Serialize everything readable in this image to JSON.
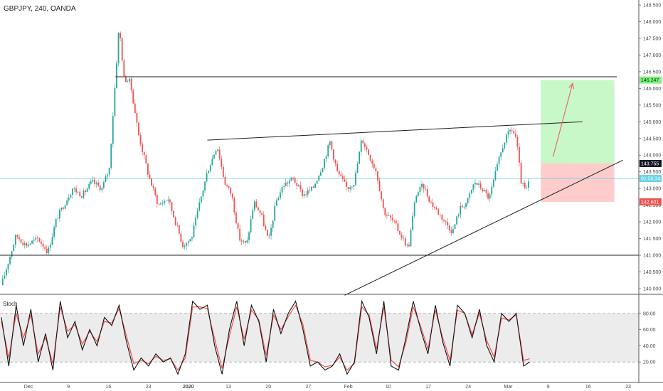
{
  "chart_data": {
    "type": "candlestick",
    "title": "GBPJPY, 240, OANDA",
    "price_axis": {
      "ylim": [
        139.85,
        148.65
      ],
      "ticks": [
        "140.000",
        "140.500",
        "141.000",
        "141.500",
        "142.000",
        "142.500",
        "143.000",
        "143.500",
        "144.000",
        "144.500",
        "145.000",
        "145.500",
        "146.000",
        "146.500",
        "147.000",
        "147.500",
        "148.000",
        "148.500"
      ]
    },
    "time_axis": {
      "labels": [
        "Dec",
        "9",
        "16",
        "23",
        "2020",
        "13",
        "20",
        "27",
        "Feb",
        "10",
        "17",
        "24",
        "Mar",
        "9",
        "16",
        "23"
      ],
      "bold_labels": [
        "2020"
      ]
    },
    "price_series": [
      {
        "t": 0,
        "p": 140.1
      },
      {
        "t": 12,
        "p": 141.6
      },
      {
        "t": 20,
        "p": 141.3
      },
      {
        "t": 30,
        "p": 141.5
      },
      {
        "t": 38,
        "p": 141.1
      },
      {
        "t": 45,
        "p": 142.1
      },
      {
        "t": 58,
        "p": 143.0
      },
      {
        "t": 66,
        "p": 142.8
      },
      {
        "t": 74,
        "p": 143.2
      },
      {
        "t": 82,
        "p": 143.0
      },
      {
        "t": 88,
        "p": 143.6
      },
      {
        "t": 96,
        "p": 147.9
      },
      {
        "t": 100,
        "p": 146.3
      },
      {
        "t": 105,
        "p": 146.2
      },
      {
        "t": 112,
        "p": 144.6
      },
      {
        "t": 120,
        "p": 143.4
      },
      {
        "t": 128,
        "p": 142.5
      },
      {
        "t": 136,
        "p": 142.7
      },
      {
        "t": 142,
        "p": 142.0
      },
      {
        "t": 148,
        "p": 141.3
      },
      {
        "t": 155,
        "p": 141.5
      },
      {
        "t": 162,
        "p": 142.6
      },
      {
        "t": 168,
        "p": 143.5
      },
      {
        "t": 176,
        "p": 144.3
      },
      {
        "t": 182,
        "p": 143.2
      },
      {
        "t": 188,
        "p": 142.8
      },
      {
        "t": 194,
        "p": 141.5
      },
      {
        "t": 200,
        "p": 141.3
      },
      {
        "t": 206,
        "p": 142.6
      },
      {
        "t": 212,
        "p": 142.2
      },
      {
        "t": 218,
        "p": 141.4
      },
      {
        "t": 224,
        "p": 142.6
      },
      {
        "t": 230,
        "p": 143.1
      },
      {
        "t": 238,
        "p": 143.3
      },
      {
        "t": 246,
        "p": 142.8
      },
      {
        "t": 254,
        "p": 143.0
      },
      {
        "t": 262,
        "p": 143.7
      },
      {
        "t": 268,
        "p": 144.4
      },
      {
        "t": 274,
        "p": 143.5
      },
      {
        "t": 282,
        "p": 143.0
      },
      {
        "t": 288,
        "p": 143.2
      },
      {
        "t": 294,
        "p": 144.5
      },
      {
        "t": 300,
        "p": 144.0
      },
      {
        "t": 306,
        "p": 143.5
      },
      {
        "t": 312,
        "p": 142.3
      },
      {
        "t": 320,
        "p": 142.0
      },
      {
        "t": 326,
        "p": 141.6
      },
      {
        "t": 332,
        "p": 141.2
      },
      {
        "t": 338,
        "p": 142.8
      },
      {
        "t": 344,
        "p": 143.1
      },
      {
        "t": 350,
        "p": 142.6
      },
      {
        "t": 356,
        "p": 142.3
      },
      {
        "t": 362,
        "p": 142.0
      },
      {
        "t": 368,
        "p": 141.7
      },
      {
        "t": 374,
        "p": 142.4
      },
      {
        "t": 380,
        "p": 142.6
      },
      {
        "t": 386,
        "p": 143.2
      },
      {
        "t": 392,
        "p": 143.0
      },
      {
        "t": 398,
        "p": 142.7
      },
      {
        "t": 404,
        "p": 143.6
      },
      {
        "t": 410,
        "p": 144.4
      },
      {
        "t": 416,
        "p": 144.8
      },
      {
        "t": 420,
        "p": 144.5
      },
      {
        "t": 424,
        "p": 143.2
      },
      {
        "t": 428,
        "p": 142.9
      },
      {
        "t": 431,
        "p": 143.3
      }
    ],
    "stoch_axis": {
      "ylim": [
        0,
        100
      ],
      "ticks": [
        "20.00",
        "40.00",
        "60.00",
        "80.00"
      ],
      "band": [
        20,
        80
      ]
    },
    "stoch_k": [
      {
        "t": 0,
        "v": 75
      },
      {
        "t": 6,
        "v": 15
      },
      {
        "t": 12,
        "v": 90
      },
      {
        "t": 18,
        "v": 40
      },
      {
        "t": 24,
        "v": 85
      },
      {
        "t": 30,
        "v": 20
      },
      {
        "t": 36,
        "v": 55
      },
      {
        "t": 42,
        "v": 10
      },
      {
        "t": 48,
        "v": 95
      },
      {
        "t": 54,
        "v": 50
      },
      {
        "t": 60,
        "v": 70
      },
      {
        "t": 66,
        "v": 35
      },
      {
        "t": 72,
        "v": 60
      },
      {
        "t": 78,
        "v": 40
      },
      {
        "t": 84,
        "v": 75
      },
      {
        "t": 90,
        "v": 65
      },
      {
        "t": 96,
        "v": 90
      },
      {
        "t": 102,
        "v": 45
      },
      {
        "t": 108,
        "v": 10
      },
      {
        "t": 114,
        "v": 25
      },
      {
        "t": 120,
        "v": 15
      },
      {
        "t": 126,
        "v": 30
      },
      {
        "t": 132,
        "v": 20
      },
      {
        "t": 138,
        "v": 25
      },
      {
        "t": 144,
        "v": 5
      },
      {
        "t": 150,
        "v": 30
      },
      {
        "t": 156,
        "v": 95
      },
      {
        "t": 162,
        "v": 85
      },
      {
        "t": 168,
        "v": 90
      },
      {
        "t": 174,
        "v": 40
      },
      {
        "t": 180,
        "v": 5
      },
      {
        "t": 186,
        "v": 60
      },
      {
        "t": 192,
        "v": 95
      },
      {
        "t": 198,
        "v": 40
      },
      {
        "t": 204,
        "v": 90
      },
      {
        "t": 210,
        "v": 70
      },
      {
        "t": 216,
        "v": 20
      },
      {
        "t": 222,
        "v": 85
      },
      {
        "t": 228,
        "v": 55
      },
      {
        "t": 234,
        "v": 80
      },
      {
        "t": 240,
        "v": 95
      },
      {
        "t": 246,
        "v": 60
      },
      {
        "t": 252,
        "v": 15
      },
      {
        "t": 258,
        "v": 20
      },
      {
        "t": 264,
        "v": 10
      },
      {
        "t": 270,
        "v": 15
      },
      {
        "t": 276,
        "v": 30
      },
      {
        "t": 282,
        "v": 5
      },
      {
        "t": 288,
        "v": 20
      },
      {
        "t": 294,
        "v": 95
      },
      {
        "t": 300,
        "v": 75
      },
      {
        "t": 306,
        "v": 30
      },
      {
        "t": 312,
        "v": 95
      },
      {
        "t": 318,
        "v": 15
      },
      {
        "t": 324,
        "v": 10
      },
      {
        "t": 330,
        "v": 50
      },
      {
        "t": 336,
        "v": 95
      },
      {
        "t": 342,
        "v": 60
      },
      {
        "t": 348,
        "v": 30
      },
      {
        "t": 354,
        "v": 90
      },
      {
        "t": 360,
        "v": 45
      },
      {
        "t": 366,
        "v": 15
      },
      {
        "t": 372,
        "v": 90
      },
      {
        "t": 378,
        "v": 80
      },
      {
        "t": 384,
        "v": 50
      },
      {
        "t": 390,
        "v": 85
      },
      {
        "t": 396,
        "v": 40
      },
      {
        "t": 402,
        "v": 20
      },
      {
        "t": 408,
        "v": 80
      },
      {
        "t": 414,
        "v": 70
      },
      {
        "t": 420,
        "v": 80
      },
      {
        "t": 426,
        "v": 15
      },
      {
        "t": 431,
        "v": 20
      }
    ],
    "stoch_d": [
      {
        "t": 0,
        "v": 70
      },
      {
        "t": 6,
        "v": 25
      },
      {
        "t": 12,
        "v": 80
      },
      {
        "t": 18,
        "v": 50
      },
      {
        "t": 24,
        "v": 78
      },
      {
        "t": 30,
        "v": 30
      },
      {
        "t": 36,
        "v": 50
      },
      {
        "t": 42,
        "v": 18
      },
      {
        "t": 48,
        "v": 88
      },
      {
        "t": 54,
        "v": 58
      },
      {
        "t": 60,
        "v": 66
      },
      {
        "t": 66,
        "v": 42
      },
      {
        "t": 72,
        "v": 58
      },
      {
        "t": 78,
        "v": 45
      },
      {
        "t": 84,
        "v": 70
      },
      {
        "t": 90,
        "v": 68
      },
      {
        "t": 96,
        "v": 86
      },
      {
        "t": 102,
        "v": 52
      },
      {
        "t": 108,
        "v": 18
      },
      {
        "t": 114,
        "v": 22
      },
      {
        "t": 120,
        "v": 18
      },
      {
        "t": 126,
        "v": 27
      },
      {
        "t": 132,
        "v": 22
      },
      {
        "t": 138,
        "v": 24
      },
      {
        "t": 144,
        "v": 10
      },
      {
        "t": 150,
        "v": 25
      },
      {
        "t": 156,
        "v": 88
      },
      {
        "t": 162,
        "v": 88
      },
      {
        "t": 168,
        "v": 86
      },
      {
        "t": 174,
        "v": 48
      },
      {
        "t": 180,
        "v": 12
      },
      {
        "t": 186,
        "v": 52
      },
      {
        "t": 192,
        "v": 88
      },
      {
        "t": 198,
        "v": 48
      },
      {
        "t": 204,
        "v": 84
      },
      {
        "t": 210,
        "v": 72
      },
      {
        "t": 216,
        "v": 28
      },
      {
        "t": 222,
        "v": 78
      },
      {
        "t": 228,
        "v": 60
      },
      {
        "t": 234,
        "v": 76
      },
      {
        "t": 240,
        "v": 90
      },
      {
        "t": 246,
        "v": 66
      },
      {
        "t": 252,
        "v": 22
      },
      {
        "t": 258,
        "v": 20
      },
      {
        "t": 264,
        "v": 14
      },
      {
        "t": 270,
        "v": 16
      },
      {
        "t": 276,
        "v": 26
      },
      {
        "t": 282,
        "v": 10
      },
      {
        "t": 288,
        "v": 18
      },
      {
        "t": 294,
        "v": 88
      },
      {
        "t": 300,
        "v": 78
      },
      {
        "t": 306,
        "v": 36
      },
      {
        "t": 312,
        "v": 88
      },
      {
        "t": 318,
        "v": 22
      },
      {
        "t": 324,
        "v": 14
      },
      {
        "t": 330,
        "v": 44
      },
      {
        "t": 336,
        "v": 88
      },
      {
        "t": 342,
        "v": 64
      },
      {
        "t": 348,
        "v": 36
      },
      {
        "t": 354,
        "v": 84
      },
      {
        "t": 360,
        "v": 50
      },
      {
        "t": 366,
        "v": 22
      },
      {
        "t": 372,
        "v": 84
      },
      {
        "t": 378,
        "v": 80
      },
      {
        "t": 384,
        "v": 54
      },
      {
        "t": 390,
        "v": 80
      },
      {
        "t": 396,
        "v": 46
      },
      {
        "t": 402,
        "v": 26
      },
      {
        "t": 408,
        "v": 74
      },
      {
        "t": 414,
        "v": 72
      },
      {
        "t": 420,
        "v": 78
      },
      {
        "t": 426,
        "v": 22
      },
      {
        "t": 431,
        "v": 24
      }
    ],
    "drawings": {
      "resistance_level": 146.35,
      "support_level": 141.0,
      "upper_trendline": {
        "from": {
          "t": 168,
          "p": 144.45
        },
        "to": {
          "t": 474,
          "p": 145.0
        }
      },
      "lower_trendline": {
        "from": {
          "t": 280,
          "p": 139.8
        },
        "to": {
          "t": 507,
          "p": 143.85
        }
      },
      "long_position": {
        "t_start": 440,
        "t_end": 500,
        "entry": 143.75,
        "target": 146.25,
        "stop": 142.6
      },
      "arrow": {
        "from": {
          "t": 450,
          "p": 143.95
        },
        "to": {
          "t": 466,
          "p": 146.15
        }
      }
    },
    "price_tags": [
      {
        "label": "146.247",
        "price": 146.25,
        "bg": "#7ef07e",
        "fg": "#0a3d0a"
      },
      {
        "label": "143.755",
        "price": 143.75,
        "bg": "#131722",
        "fg": "#ffffff"
      },
      {
        "label": "01:56:34",
        "price": 143.3,
        "bg": "#66d3e8",
        "fg": "#ffffff"
      },
      {
        "label": "142.601",
        "price": 142.6,
        "bg": "#ef5350",
        "fg": "#ffffff"
      }
    ],
    "current_price_line": 143.3,
    "stoch_title": "Stoch",
    "colors": {
      "up": "#26a69a",
      "down": "#ef5350",
      "stoch_k": "#111111",
      "stoch_d": "#ef5350",
      "target_zone": "#c8f7c8",
      "stop_zone": "#ffcccc",
      "arrow": "#e86a7a",
      "cyan": "#66d3e8"
    }
  }
}
